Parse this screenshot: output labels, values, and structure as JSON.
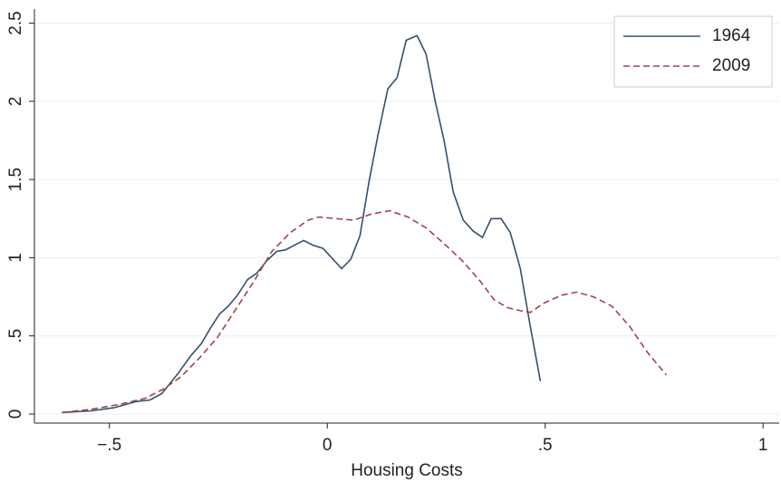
{
  "chart_data": {
    "type": "line",
    "x_label": "Housing Costs",
    "xlim": [
      -0.672,
      1.037
    ],
    "ylim": [
      -0.058,
      2.59
    ],
    "xticks": [
      {
        "value": -0.5,
        "label": "−.5"
      },
      0,
      {
        "value": 0.5,
        "label": ".5"
      },
      1
    ],
    "yticks": [
      0,
      {
        "value": 0.5,
        "label": ".5"
      },
      1,
      1.5,
      2,
      2.5
    ],
    "grid": true,
    "legend": "top-right",
    "series": [
      {
        "name": "1964",
        "color": "#34506f",
        "style": "solid",
        "x": [
          -0.609,
          -0.543,
          -0.49,
          -0.439,
          -0.407,
          -0.38,
          -0.345,
          -0.314,
          -0.289,
          -0.268,
          -0.247,
          -0.227,
          -0.206,
          -0.183,
          -0.162,
          -0.139,
          -0.116,
          -0.096,
          -0.075,
          -0.054,
          -0.033,
          -0.01,
          0.01,
          0.033,
          0.054,
          0.075,
          0.096,
          0.116,
          0.139,
          0.16,
          0.181,
          0.206,
          0.227,
          0.247,
          0.268,
          0.289,
          0.312,
          0.335,
          0.356,
          0.376,
          0.399,
          0.42,
          0.443,
          0.464,
          0.489
        ],
        "values": [
          0.01,
          0.02,
          0.04,
          0.08,
          0.09,
          0.13,
          0.25,
          0.37,
          0.45,
          0.55,
          0.64,
          0.69,
          0.76,
          0.86,
          0.9,
          0.98,
          1.04,
          1.05,
          1.08,
          1.11,
          1.08,
          1.06,
          1.0,
          0.93,
          0.99,
          1.14,
          1.49,
          1.78,
          2.08,
          2.15,
          2.39,
          2.42,
          2.3,
          2.01,
          1.75,
          1.42,
          1.24,
          1.17,
          1.13,
          1.25,
          1.25,
          1.16,
          0.93,
          0.59,
          0.21
        ]
      },
      {
        "name": "2009",
        "color": "#a3444c",
        "style": "dashed",
        "x": [
          -0.609,
          -0.543,
          -0.48,
          -0.418,
          -0.376,
          -0.335,
          -0.293,
          -0.252,
          -0.21,
          -0.168,
          -0.127,
          -0.085,
          -0.044,
          -0.019,
          0.019,
          0.06,
          0.102,
          0.143,
          0.185,
          0.227,
          0.268,
          0.31,
          0.351,
          0.383,
          0.414,
          0.445,
          0.466,
          0.497,
          0.538,
          0.572,
          0.611,
          0.653,
          0.694,
          0.736,
          0.778
        ],
        "values": [
          0.01,
          0.03,
          0.06,
          0.1,
          0.16,
          0.24,
          0.36,
          0.49,
          0.67,
          0.85,
          1.04,
          1.16,
          1.24,
          1.26,
          1.25,
          1.24,
          1.28,
          1.3,
          1.26,
          1.19,
          1.09,
          0.98,
          0.85,
          0.73,
          0.68,
          0.66,
          0.65,
          0.71,
          0.76,
          0.78,
          0.75,
          0.69,
          0.56,
          0.39,
          0.25
        ]
      }
    ]
  }
}
